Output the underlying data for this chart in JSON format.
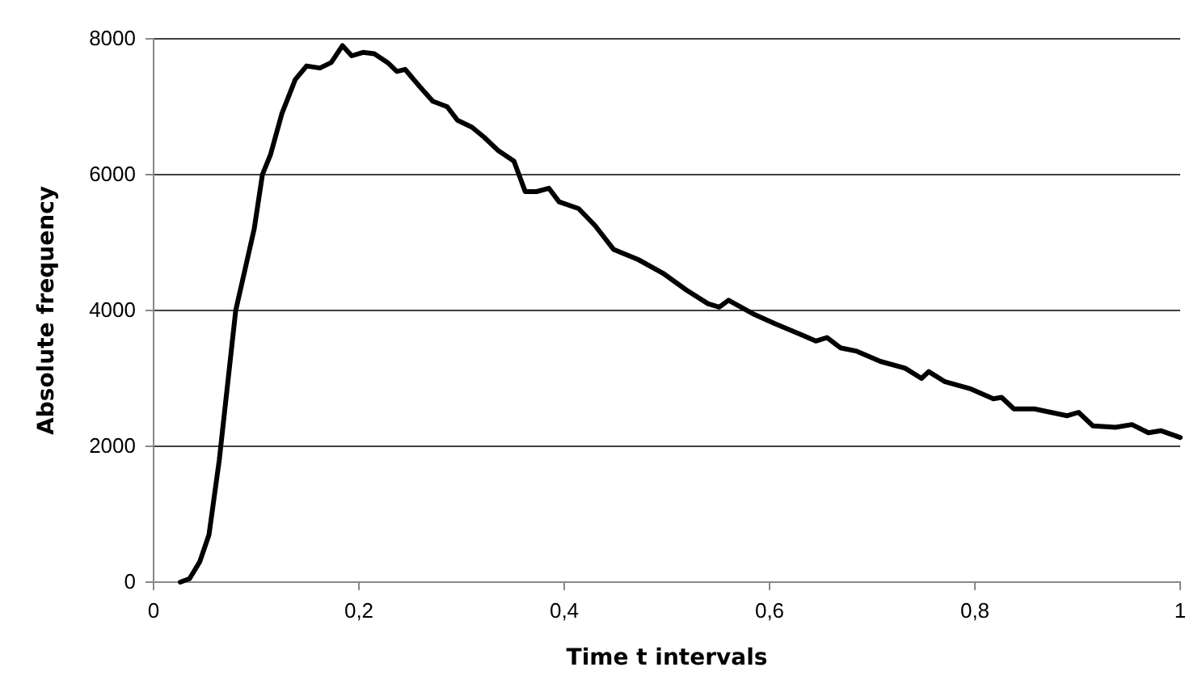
{
  "chart_data": {
    "type": "line",
    "xlabel": "Time t intervals",
    "ylabel": "Absolute frequency",
    "xlim": [
      0,
      1
    ],
    "ylim": [
      0,
      8000
    ],
    "xticks": [
      0,
      {
        "value": 0.2,
        "label": "0,2"
      },
      {
        "value": 0.4,
        "label": "0,4"
      },
      {
        "value": 0.6,
        "label": "0,6"
      },
      {
        "value": 0.8,
        "label": "0,8"
      },
      1
    ],
    "yticks": [
      0,
      2000,
      4000,
      6000,
      8000
    ],
    "grid": "y",
    "marker": "none",
    "line_style": "solid",
    "series": [
      {
        "color": "#000000",
        "x": [
          0.026,
          0.035,
          0.045,
          0.054,
          0.064,
          0.072,
          0.08,
          0.089,
          0.098,
          0.106,
          0.114,
          0.125,
          0.138,
          0.149,
          0.162,
          0.173,
          0.184,
          0.193,
          0.204,
          0.215,
          0.228,
          0.237,
          0.245,
          0.259,
          0.272,
          0.286,
          0.296,
          0.31,
          0.322,
          0.336,
          0.351,
          0.362,
          0.373,
          0.385,
          0.395,
          0.414,
          0.43,
          0.448,
          0.472,
          0.496,
          0.519,
          0.54,
          0.551,
          0.56,
          0.584,
          0.606,
          0.63,
          0.645,
          0.656,
          0.669,
          0.685,
          0.708,
          0.732,
          0.748,
          0.755,
          0.771,
          0.795,
          0.818,
          0.826,
          0.838,
          0.858,
          0.89,
          0.901,
          0.915,
          0.937,
          0.953,
          0.969,
          0.981,
          1.0
        ],
        "values": [
          0,
          50,
          300,
          700,
          1800,
          2900,
          4000,
          4600,
          5200,
          6000,
          6300,
          6900,
          7400,
          7600,
          7570,
          7650,
          7900,
          7750,
          7800,
          7780,
          7650,
          7520,
          7550,
          7300,
          7080,
          7000,
          6800,
          6700,
          6550,
          6350,
          6200,
          5750,
          5750,
          5800,
          5600,
          5500,
          5250,
          4900,
          4750,
          4550,
          4300,
          4100,
          4050,
          4150,
          3950,
          3800,
          3650,
          3550,
          3600,
          3450,
          3400,
          3250,
          3150,
          3000,
          3100,
          2950,
          2850,
          2700,
          2720,
          2550,
          2550,
          2450,
          2500,
          2300,
          2280,
          2320,
          2200,
          2230,
          2130
        ]
      }
    ]
  }
}
